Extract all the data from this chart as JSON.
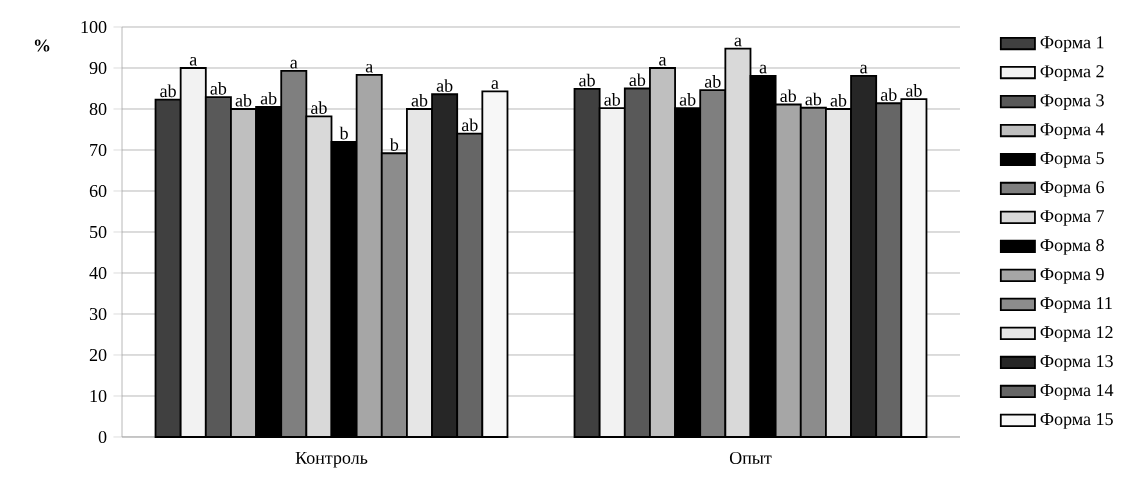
{
  "chart_data": {
    "type": "bar",
    "ylabel": "%",
    "categories": [
      "Контроль",
      "Опыт"
    ],
    "ylim": [
      0,
      100
    ],
    "yticks": [
      0,
      10,
      20,
      30,
      40,
      50,
      60,
      70,
      80,
      90,
      100
    ],
    "grid": "y",
    "legend": "right",
    "series": [
      {
        "name": "Форма 1",
        "color": "#404040",
        "values": [
          82.3,
          84.9
        ],
        "value_labels": [
          "ab",
          "ab"
        ]
      },
      {
        "name": "Форма 2",
        "color": "#f2f2f2",
        "values": [
          90,
          80.2
        ],
        "value_labels": [
          "a",
          "ab"
        ]
      },
      {
        "name": "Форма 3",
        "color": "#595959",
        "values": [
          82.9,
          85
        ],
        "value_labels": [
          "ab",
          "ab"
        ]
      },
      {
        "name": "Форма 4",
        "color": "#bfbfbf",
        "values": [
          80,
          90
        ],
        "value_labels": [
          "ab",
          "a"
        ]
      },
      {
        "name": "Форма 5",
        "color": "#000000",
        "values": [
          80.5,
          80.2
        ],
        "value_labels": [
          "ab",
          "ab"
        ]
      },
      {
        "name": "Форма 6",
        "color": "#7f7f7f",
        "values": [
          89.3,
          84.6
        ],
        "value_labels": [
          "a",
          "ab"
        ]
      },
      {
        "name": "Форма 7",
        "color": "#d9d9d9",
        "values": [
          78.2,
          94.7
        ],
        "value_labels": [
          "ab",
          "a"
        ]
      },
      {
        "name": "Форма 8",
        "color": "#000000",
        "values": [
          72,
          88.1
        ],
        "value_labels": [
          "b",
          "a"
        ]
      },
      {
        "name": "Форма 9",
        "color": "#a6a6a6",
        "values": [
          88.3,
          81.1
        ],
        "value_labels": [
          "a",
          "ab"
        ]
      },
      {
        "name": "Форма 11",
        "color": "#8c8c8c",
        "values": [
          69.2,
          80.3
        ],
        "value_labels": [
          "b",
          "ab"
        ]
      },
      {
        "name": "Форма 12",
        "color": "#e6e6e6",
        "values": [
          80,
          80
        ],
        "value_labels": [
          "ab",
          "ab"
        ]
      },
      {
        "name": "Форма 13",
        "color": "#262626",
        "values": [
          83.6,
          88.1
        ],
        "value_labels": [
          "ab",
          "a"
        ]
      },
      {
        "name": "Форма 14",
        "color": "#666666",
        "values": [
          74,
          81.4
        ],
        "value_labels": [
          "ab",
          "ab"
        ]
      },
      {
        "name": "Форма 15",
        "color": "#f7f7f7",
        "values": [
          84.3,
          82.4
        ],
        "value_labels": [
          "a",
          "ab"
        ]
      }
    ]
  }
}
